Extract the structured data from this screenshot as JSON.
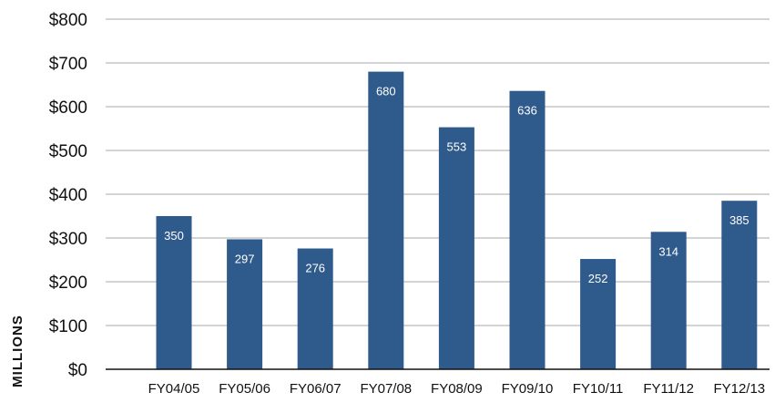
{
  "chart_data": {
    "type": "bar",
    "title": "",
    "xlabel": "",
    "ylabel": "MILLIONS",
    "categories": [
      "FY04/05",
      "FY05/06",
      "FY06/07",
      "FY07/08",
      "FY08/09",
      "FY09/10",
      "FY10/11",
      "FY11/12",
      "FY12/13"
    ],
    "values": [
      350,
      297,
      276,
      680,
      553,
      636,
      252,
      314,
      385
    ],
    "data_labels": [
      "350",
      "297",
      "276",
      "680",
      "553",
      "636",
      "252",
      "314",
      "385"
    ],
    "ylim": [
      0,
      800
    ],
    "y_ticks": [
      0,
      100,
      200,
      300,
      400,
      500,
      600,
      700,
      800
    ],
    "y_tick_labels": [
      "$0",
      "$100",
      "$200",
      "$300",
      "$400",
      "$500",
      "$600",
      "$700",
      "$800"
    ],
    "grid": true,
    "bar_color": "#2f5a8c",
    "grid_color": "#a8a8a8",
    "axis_color": "#111111",
    "data_label_color": "#ffffff"
  }
}
